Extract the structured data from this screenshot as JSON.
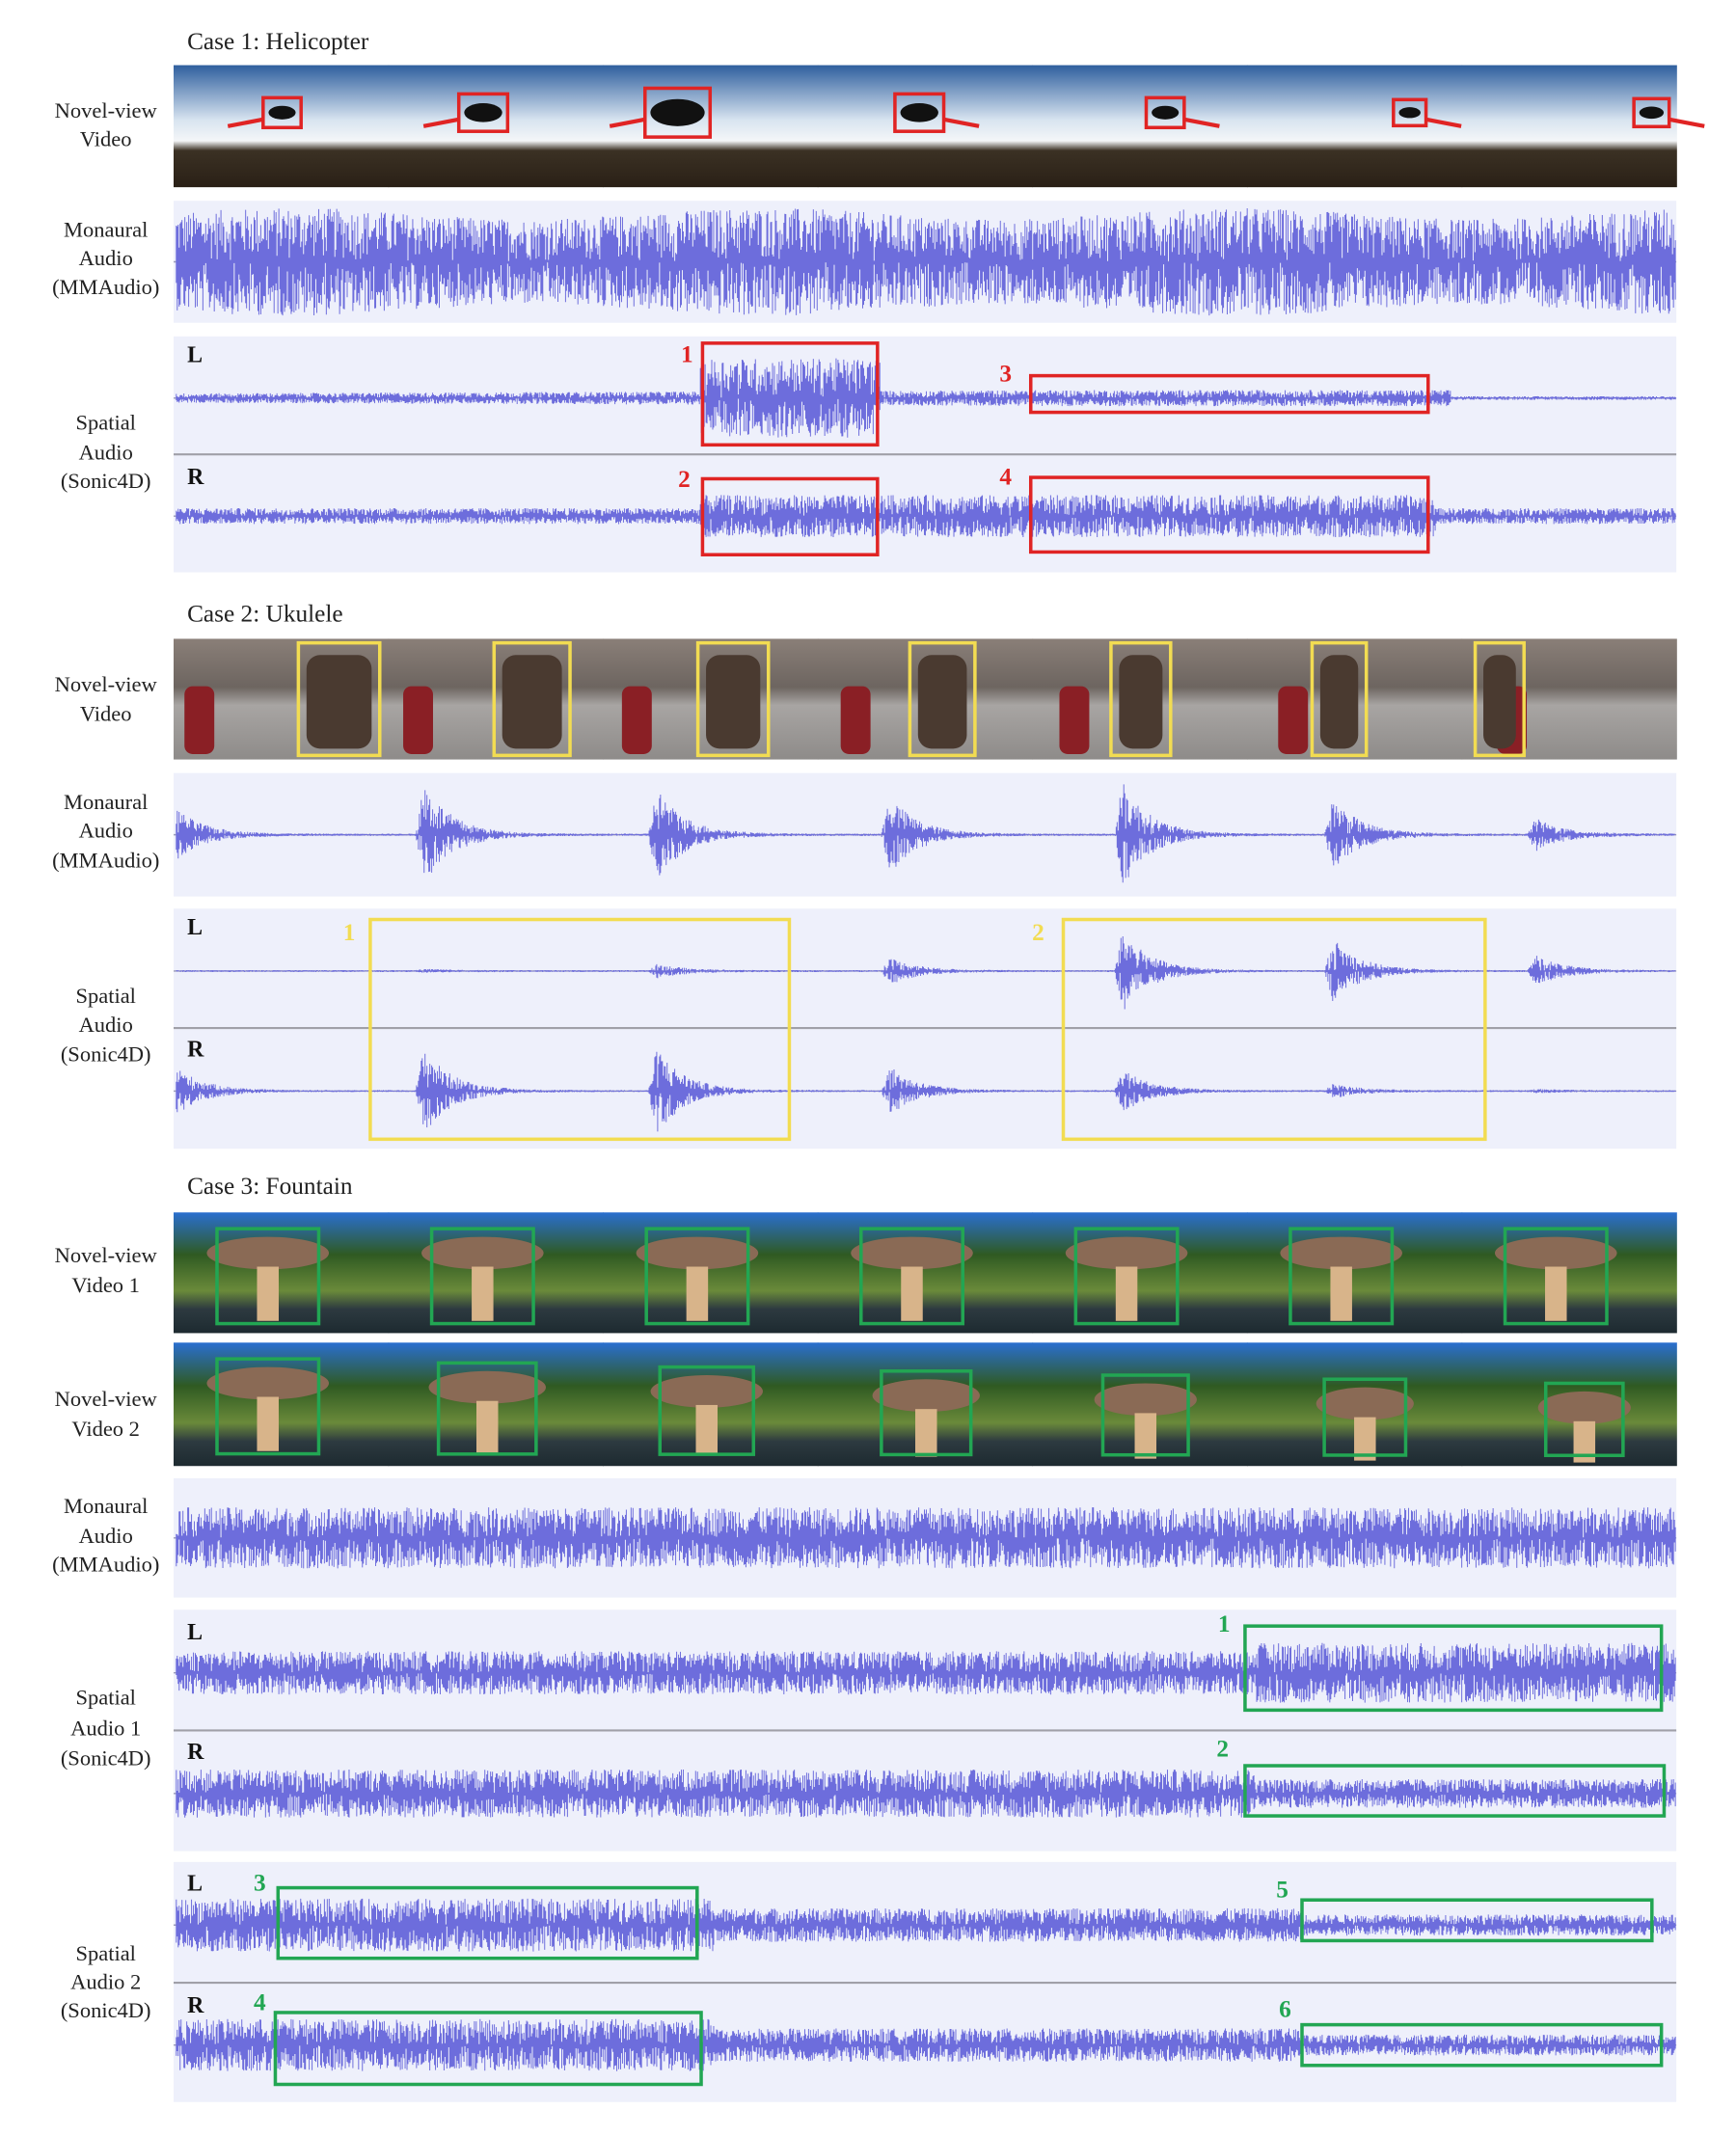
{
  "cases": [
    {
      "title": "Case 1: Helicopter",
      "rows": [
        {
          "label": [
            "Novel-view",
            "Video"
          ]
        },
        {
          "label": [
            "Monaural",
            "Audio",
            "(MMAudio)"
          ]
        },
        {
          "label": [
            "Spatial",
            "Audio",
            "(Sonic4D)"
          ],
          "channels": [
            {
              "name": "L",
              "markers": [
                "1",
                "3"
              ]
            },
            {
              "name": "R",
              "markers": [
                "2",
                "4"
              ]
            }
          ]
        }
      ]
    },
    {
      "title": "Case 2: Ukulele",
      "rows": [
        {
          "label": [
            "Novel-view",
            "Video"
          ]
        },
        {
          "label": [
            "Monaural",
            "Audio",
            "(MMAudio)"
          ]
        },
        {
          "label": [
            "Spatial",
            "Audio",
            "(Sonic4D)"
          ],
          "channels": [
            {
              "name": "L",
              "markers": [
                "1",
                "2"
              ]
            },
            {
              "name": "R",
              "markers": []
            }
          ]
        }
      ]
    },
    {
      "title": "Case 3: Fountain",
      "rows": [
        {
          "label": [
            "Novel-view",
            "Video 1"
          ]
        },
        {
          "label": [
            "Novel-view",
            "Video 2"
          ]
        },
        {
          "label": [
            "Monaural",
            "Audio",
            "(MMAudio)"
          ]
        },
        {
          "label": [
            "Spatial",
            "Audio 1",
            "(Sonic4D)"
          ],
          "channels": [
            {
              "name": "L",
              "markers": [
                "1"
              ]
            },
            {
              "name": "R",
              "markers": [
                "2"
              ]
            }
          ]
        },
        {
          "label": [
            "Spatial",
            "Audio 2",
            "(Sonic4D)"
          ],
          "channels": [
            {
              "name": "L",
              "markers": [
                "3",
                "5"
              ]
            },
            {
              "name": "R",
              "markers": [
                "4",
                "6"
              ]
            }
          ]
        }
      ]
    }
  ]
}
